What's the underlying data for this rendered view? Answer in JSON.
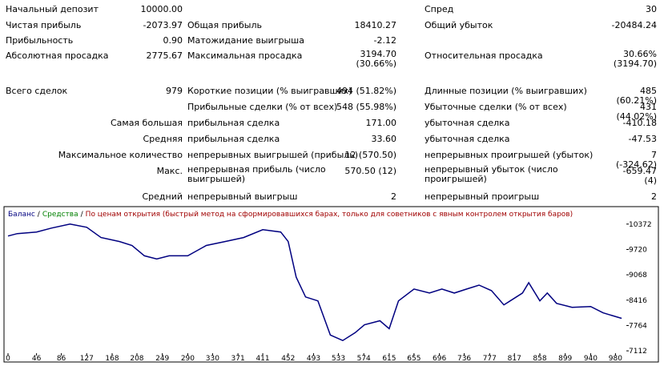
{
  "table": {
    "rows": [
      [
        "Начальный депозит",
        "10000.00",
        null,
        null,
        "Спред",
        "30"
      ],
      [
        "Чистая прибыль",
        "-2073.97",
        "Общая прибыль",
        "18410.27",
        "Общий убыток",
        "-20484.24"
      ],
      [
        "Прибыльность",
        "0.90",
        "Матожидание выигрыша",
        "-2.12",
        null,
        null
      ],
      [
        "Абсолютная просадка",
        "2775.67",
        "Максимальная просадка",
        "3194.70\n(30.66%)",
        "Относительная просадка",
        "30.66%\n(3194.70)"
      ],
      [
        "Всего сделок",
        "979",
        "Короткие позиции (% выигравших)",
        "494 (51.82%)",
        "Длинные позиции (% выигравших)",
        "485 (60.21%)"
      ],
      [
        null,
        null,
        "Прибыльные сделки (% от всех)",
        "548 (55.98%)",
        "Убыточные сделки (% от всех)",
        "431 (44.02%)"
      ],
      [
        null,
        "Самая большая",
        "прибыльная сделка",
        "171.00",
        "убыточная сделка",
        "-410.18"
      ],
      [
        null,
        "Средняя",
        "прибыльная сделка",
        "33.60",
        "убыточная сделка",
        "-47.53"
      ],
      [
        null,
        "Максимальное количество",
        "непрерывных выигрышей (прибыль)",
        "12 (570.50)",
        "непрерывных проигрышей (убыток)",
        "7 (-324.62)"
      ],
      [
        null,
        "Макс.",
        "непрерывная прибыль (число\nвыигрышей)",
        "570.50 (12)",
        "непрерывный убыток (число\nпроигрышей)",
        "-659.47 (4)"
      ],
      [
        null,
        "Средний",
        "непрерывный выигрыш",
        "2",
        "непрерывный проигрыш",
        "2"
      ]
    ]
  },
  "chart_data": {
    "type": "line",
    "legend": [
      {
        "text": "Баланс",
        "color": "#000080"
      },
      {
        "text": "Средства",
        "color": "#008000"
      },
      {
        "text": "По ценам открытия (быстрый метод на сформировавшихся барах, только для советников с явным контролем открытия баров)",
        "color": "#a00000"
      }
    ],
    "legend_separator": "/",
    "x": [
      0,
      15,
      46,
      70,
      100,
      127,
      150,
      180,
      200,
      220,
      240,
      260,
      290,
      320,
      350,
      380,
      411,
      440,
      452,
      465,
      480,
      500,
      520,
      540,
      560,
      575,
      600,
      615,
      630,
      655,
      680,
      700,
      720,
      740,
      760,
      780,
      800,
      830,
      840,
      858,
      870,
      885,
      910,
      940,
      960,
      990
    ],
    "series": [
      {
        "name": "Баланс",
        "color": "#000080",
        "values": [
          10066,
          10127,
          10168,
          10270,
          10372,
          10290,
          10026,
          9924,
          9822,
          9557,
          9476,
          9557,
          9557,
          9822,
          9924,
          10026,
          10229,
          10168,
          9924,
          9007,
          8497,
          8396,
          7519,
          7377,
          7580,
          7784,
          7886,
          7682,
          8396,
          8701,
          8599,
          8701,
          8599,
          8701,
          8803,
          8660,
          8293,
          8599,
          8864,
          8396,
          8599,
          8334,
          8233,
          8253,
          8090,
          7948
        ]
      }
    ],
    "xlim": [
      0,
      995
    ],
    "ylim": [
      6990,
      10739
    ],
    "xticks": [
      0,
      46,
      86,
      127,
      168,
      208,
      249,
      290,
      330,
      371,
      411,
      452,
      493,
      533,
      574,
      615,
      655,
      696,
      736,
      777,
      817,
      858,
      899,
      940,
      980
    ],
    "yticks": [
      7112,
      7764,
      8416,
      9068,
      9720,
      10372
    ],
    "grid": false
  }
}
